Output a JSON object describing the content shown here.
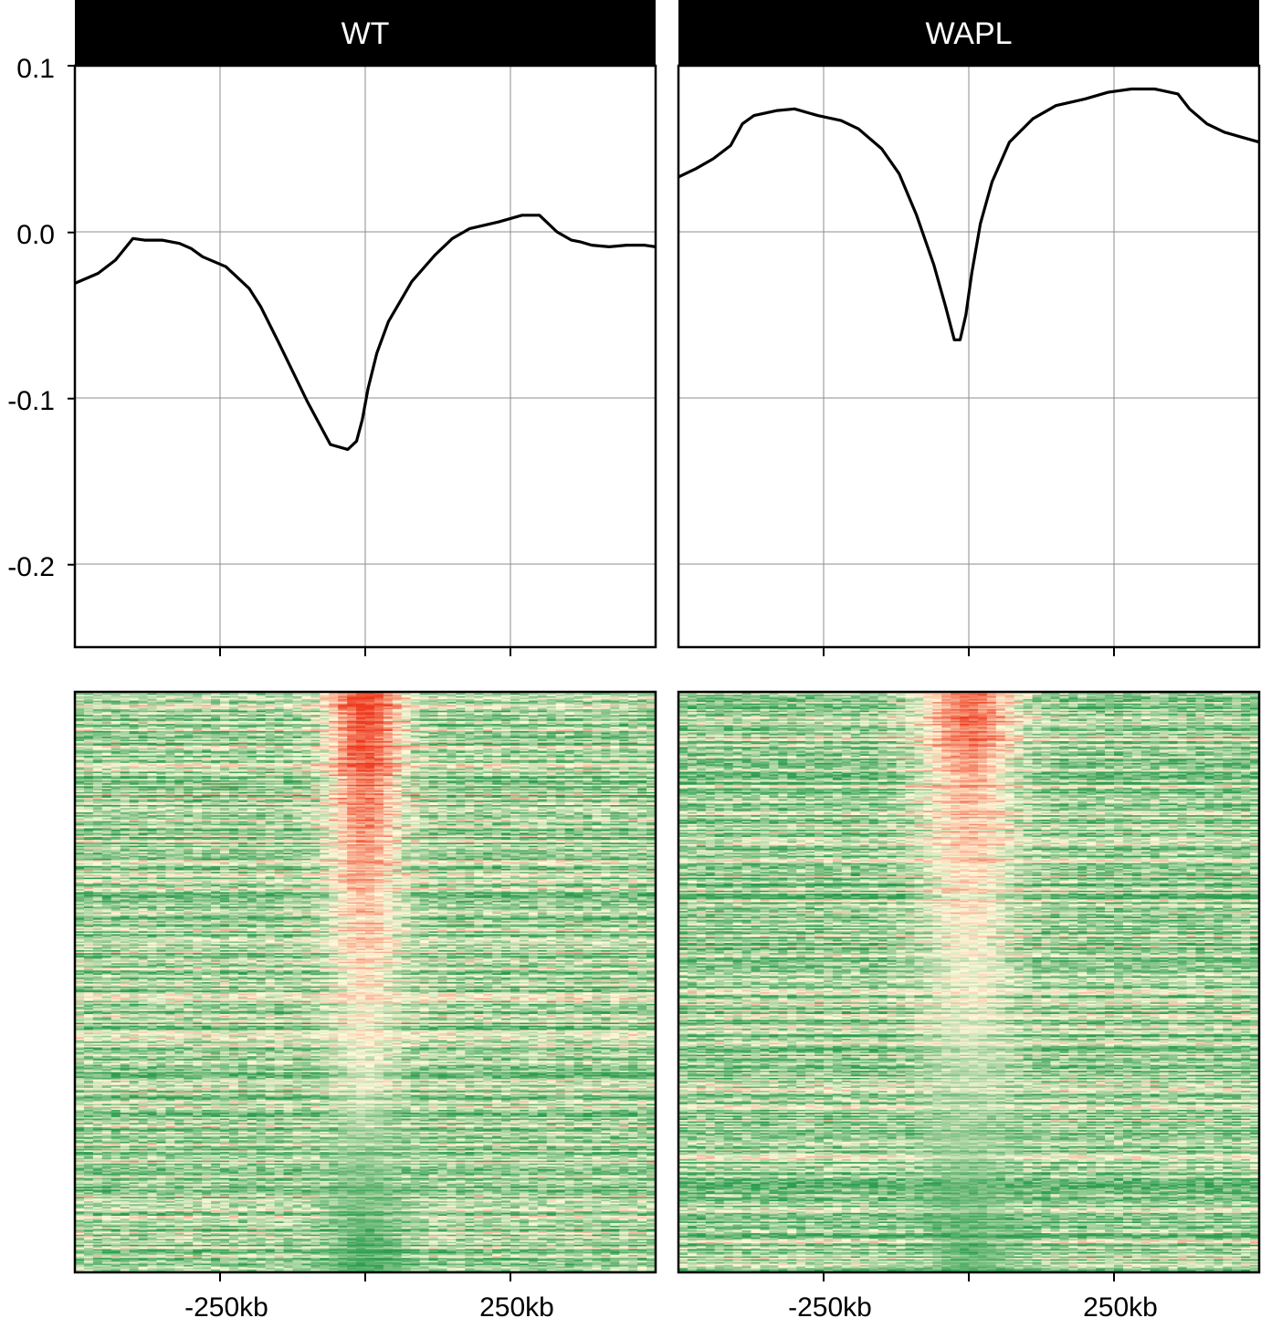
{
  "figure": {
    "colors": {
      "line": "#000000",
      "grid": "#8c8c8c",
      "header_bg": "#000000",
      "heat_low": "#2e9e50",
      "heat_mid": "#fff9da",
      "heat_high": "#ee3a1f"
    }
  },
  "chart_data": [
    {
      "type": "line",
      "panel": "WT",
      "title": "WT",
      "x_unit": "kb",
      "xlim": [
        -500,
        500
      ],
      "ylim": [
        -0.25,
        0.1
      ],
      "y_ticks": [
        0.1,
        0.0,
        -0.1,
        -0.2
      ],
      "y_tick_labels": [
        "0.1",
        "0.0",
        "-0.1",
        "-0.2"
      ],
      "x_ticks": [
        -250,
        0,
        250
      ],
      "grid": true,
      "series": [
        {
          "x": [
            -500,
            -460,
            -430,
            -400,
            -380,
            -350,
            -320,
            -300,
            -280,
            -240,
            -200,
            -180,
            -150,
            -100,
            -60,
            -30,
            -15,
            -5,
            5,
            20,
            40,
            80,
            120,
            150,
            180,
            230,
            270,
            300,
            330,
            355,
            370,
            390,
            420,
            450,
            480,
            500
          ],
          "y": [
            -0.031,
            -0.025,
            -0.017,
            -0.004,
            -0.005,
            -0.005,
            -0.007,
            -0.01,
            -0.015,
            -0.021,
            -0.034,
            -0.045,
            -0.066,
            -0.102,
            -0.128,
            -0.131,
            -0.126,
            -0.113,
            -0.094,
            -0.073,
            -0.054,
            -0.03,
            -0.014,
            -0.004,
            0.002,
            0.006,
            0.01,
            0.01,
            0.0,
            -0.005,
            -0.006,
            -0.008,
            -0.009,
            -0.008,
            -0.008,
            -0.009
          ]
        }
      ]
    },
    {
      "type": "line",
      "panel": "WAPL",
      "title": "WAPL",
      "x_unit": "kb",
      "xlim": [
        -500,
        500
      ],
      "ylim": [
        -0.25,
        0.1
      ],
      "x_ticks": [
        -250,
        0,
        250
      ],
      "grid": true,
      "series": [
        {
          "x": [
            -500,
            -470,
            -440,
            -410,
            -390,
            -370,
            -330,
            -300,
            -260,
            -220,
            -190,
            -150,
            -120,
            -90,
            -60,
            -40,
            -25,
            -15,
            -5,
            5,
            20,
            40,
            70,
            110,
            150,
            200,
            240,
            280,
            320,
            360,
            380,
            410,
            440,
            470,
            500
          ],
          "y": [
            0.033,
            0.038,
            0.044,
            0.052,
            0.065,
            0.07,
            0.073,
            0.074,
            0.07,
            0.067,
            0.062,
            0.05,
            0.035,
            0.01,
            -0.02,
            -0.045,
            -0.065,
            -0.065,
            -0.05,
            -0.025,
            0.005,
            0.03,
            0.054,
            0.068,
            0.076,
            0.08,
            0.084,
            0.086,
            0.086,
            0.083,
            0.074,
            0.065,
            0.06,
            0.057,
            0.054
          ]
        }
      ]
    },
    {
      "type": "heatmap",
      "panel": "WT",
      "x_unit": "kb",
      "xlim": [
        -500,
        500
      ],
      "x_ticks": [
        -250,
        0,
        250
      ],
      "x_tick_labels": [
        "-250kb",
        "250kb"
      ],
      "row_count": 400,
      "colormap": [
        "#2e9e50",
        "#fff9da",
        "#ee3a1f"
      ],
      "center_profile": {
        "row_frac": [
          0.0,
          0.1,
          0.25,
          0.35,
          0.45,
          0.55,
          0.65,
          0.8,
          1.0
        ],
        "value": [
          0.98,
          0.93,
          0.75,
          0.68,
          0.6,
          0.5,
          0.45,
          0.25,
          0.05
        ]
      },
      "background_level": 0.3,
      "center_width_kb": 45
    },
    {
      "type": "heatmap",
      "panel": "WAPL",
      "x_unit": "kb",
      "xlim": [
        -500,
        500
      ],
      "x_ticks": [
        -250,
        0,
        250
      ],
      "x_tick_labels": [
        "-250kb",
        "250kb"
      ],
      "row_count": 400,
      "colormap": [
        "#2e9e50",
        "#fff9da",
        "#ee3a1f"
      ],
      "center_profile": {
        "row_frac": [
          0.0,
          0.08,
          0.2,
          0.3,
          0.45,
          0.6,
          0.8,
          1.0
        ],
        "value": [
          0.9,
          0.82,
          0.65,
          0.6,
          0.5,
          0.4,
          0.25,
          0.1
        ]
      },
      "background_level": 0.28,
      "center_width_kb": 60
    }
  ]
}
